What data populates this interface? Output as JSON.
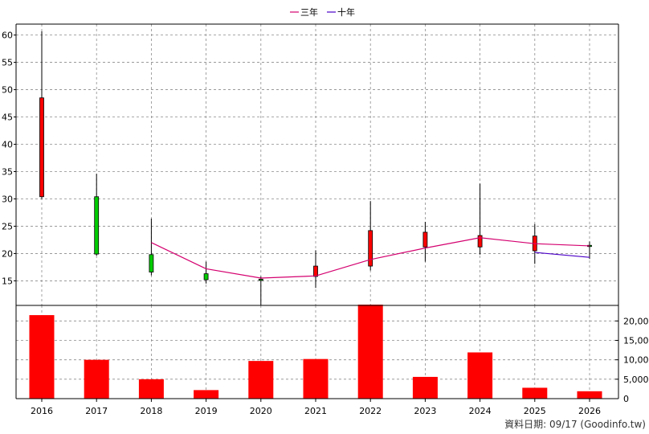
{
  "chart_data": {
    "type": "candlestick",
    "legend": [
      {
        "label": "三年",
        "color": "#d4006f"
      },
      {
        "label": "十年",
        "color": "#4b00c8"
      }
    ],
    "categories": [
      "2016",
      "2017",
      "2018",
      "2019",
      "2020",
      "2021",
      "2022",
      "2023",
      "2024",
      "2025",
      "2026"
    ],
    "price_axis": {
      "ticks": [
        15,
        20,
        25,
        30,
        35,
        40,
        45,
        50,
        55,
        60
      ],
      "ylim": [
        10.5,
        62
      ]
    },
    "candles": [
      {
        "year": "2016",
        "open": 30.4,
        "close": 48.5,
        "high": 60.7,
        "low": 30.0
      },
      {
        "year": "2017",
        "open": 30.4,
        "close": 19.9,
        "high": 34.6,
        "low": 19.6
      },
      {
        "year": "2018",
        "open": 19.8,
        "close": 16.6,
        "high": 26.4,
        "low": 16.0
      },
      {
        "year": "2019",
        "open": 16.3,
        "close": 15.2,
        "high": 18.5,
        "low": 14.5
      },
      {
        "year": "2020",
        "open": 15.3,
        "close": 15.1,
        "high": 15.8,
        "low": 10.6
      },
      {
        "year": "2021",
        "open": 15.8,
        "close": 17.7,
        "high": 20.6,
        "low": 13.7
      },
      {
        "year": "2022",
        "open": 17.7,
        "close": 24.2,
        "high": 29.6,
        "low": 16.9
      },
      {
        "year": "2023",
        "open": 21.2,
        "close": 23.9,
        "high": 25.8,
        "low": 18.5
      },
      {
        "year": "2024",
        "open": 21.2,
        "close": 23.3,
        "high": 32.8,
        "low": 19.8
      },
      {
        "year": "2025",
        "open": 20.5,
        "close": 23.2,
        "high": 25.4,
        "low": 18.1
      },
      {
        "year": "2026",
        "open": 21.5,
        "close": 21.3,
        "high": 22.2,
        "low": 19.0
      }
    ],
    "candle_colors": {
      "up": "#ff0000",
      "down": "#00cc00"
    },
    "series": [
      {
        "name": "三年",
        "color": "#d4006f",
        "values": [
          null,
          null,
          22.0,
          17.2,
          15.5,
          15.9,
          18.9,
          21.0,
          22.9,
          21.8,
          21.4
        ]
      },
      {
        "name": "十年",
        "color": "#4b00c8",
        "values": [
          null,
          null,
          null,
          null,
          null,
          null,
          null,
          null,
          null,
          20.2,
          19.3
        ]
      }
    ],
    "volume": {
      "values": [
        21500,
        10000,
        5000,
        2200,
        9700,
        10200,
        24200,
        5600,
        11900,
        2800,
        1900
      ],
      "ticks": [
        0,
        5000,
        10000,
        15000,
        20000
      ],
      "tick_labels": [
        "0",
        "5,000",
        "10,000",
        "15,000",
        "20,000"
      ],
      "ymax": 24000,
      "color": "#ff0000"
    },
    "grid": true
  },
  "footer": {
    "text": "資料日期: 09/17  (Goodinfo.tw)"
  }
}
